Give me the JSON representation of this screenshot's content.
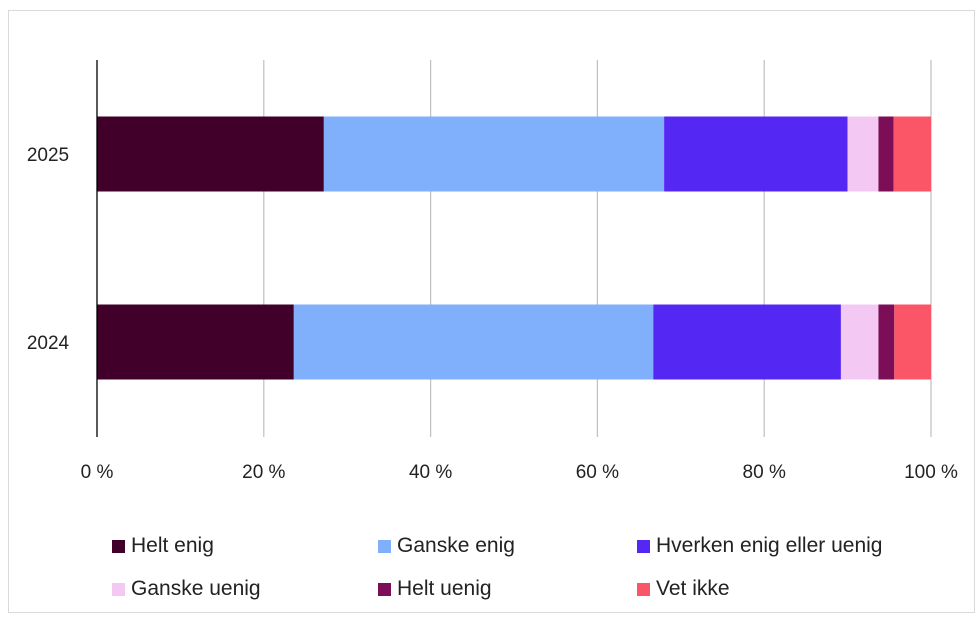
{
  "chart_data": {
    "type": "bar",
    "orientation": "horizontal",
    "stacked": true,
    "categories": [
      "2024",
      "2025"
    ],
    "series": [
      {
        "name": "Helt enig",
        "color": "#41002a",
        "values": [
          23.6,
          27.2
        ]
      },
      {
        "name": "Ganske enig",
        "color": "#80b0fc",
        "values": [
          43.1,
          40.8
        ]
      },
      {
        "name": "Hverken enig eller uenig",
        "color": "#5428f2",
        "values": [
          22.5,
          22.0
        ]
      },
      {
        "name": "Ganske uenig",
        "color": "#f3c9f3",
        "values": [
          4.5,
          3.7
        ]
      },
      {
        "name": "Helt uenig",
        "color": "#7c0e58",
        "values": [
          1.9,
          1.8
        ]
      },
      {
        "name": "Vet ikke",
        "color": "#fb5668",
        "values": [
          4.4,
          4.5
        ]
      }
    ],
    "xlim": [
      0,
      100
    ],
    "x_ticks": [
      "0 %",
      "20 %",
      "40 %",
      "60 %",
      "80 %",
      "100 %"
    ],
    "x_tick_values": [
      0,
      20,
      40,
      60,
      80,
      100
    ],
    "title": "",
    "xlabel": "",
    "ylabel": "",
    "grid": true,
    "legend_position": "bottom"
  }
}
